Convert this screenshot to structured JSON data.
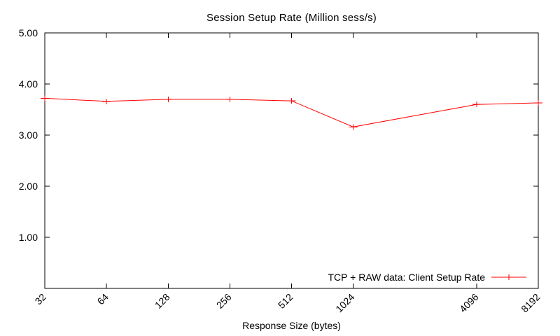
{
  "chart_data": {
    "type": "line",
    "title": "Session Setup Rate (Million sess/s)",
    "xlabel": "Response Size (bytes)",
    "ylabel": "",
    "x": [
      32,
      64,
      128,
      256,
      512,
      1024,
      4096,
      8192
    ],
    "categories": [
      "32",
      "64",
      "128",
      "256",
      "512",
      "1024",
      "4096",
      "8192"
    ],
    "series": [
      {
        "name": "TCP + RAW data: Client Setup Rate",
        "values": [
          3.72,
          3.66,
          3.7,
          3.7,
          3.67,
          3.16,
          3.6,
          3.63
        ],
        "color": "#ff0000",
        "marker": "plus"
      }
    ],
    "xscale": "log2",
    "xlim": [
      32,
      8192
    ],
    "ylim": [
      0,
      5
    ],
    "yticks": {
      "values": [
        1,
        2,
        3,
        4,
        5
      ],
      "labels": [
        "1.00",
        "2.00",
        "3.00",
        "4.00",
        "5.00"
      ]
    },
    "grid": false,
    "legend_position": "inside-bottom-right",
    "axis_color": "#000000",
    "background": "#ffffff"
  }
}
